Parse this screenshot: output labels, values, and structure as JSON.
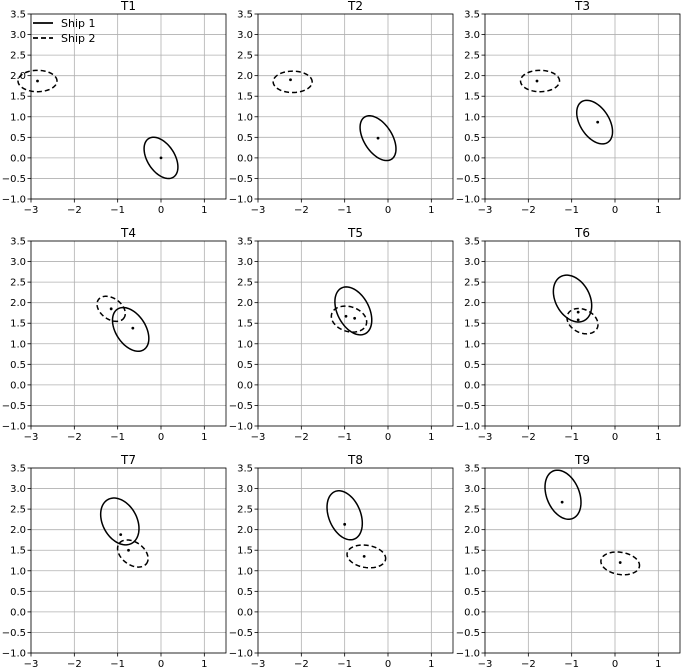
{
  "chart_data": {
    "type": "scatter",
    "layout": "3x3 grid of subplots",
    "xlim": [
      -3,
      1.5
    ],
    "ylim": [
      -1.0,
      3.5
    ],
    "x_ticks": [
      -3,
      -2,
      -1,
      0,
      1
    ],
    "y_ticks": [
      -1.0,
      -0.5,
      0.0,
      0.5,
      1.0,
      1.5,
      2.0,
      2.5,
      3.0,
      3.5
    ],
    "x_tick_labels": [
      "−3",
      "−2",
      "−1",
      "0",
      "1"
    ],
    "y_tick_labels": [
      "−1.0",
      "−0.5",
      "0.0",
      "0.5",
      "1.0",
      "1.5",
      "2.0",
      "2.5",
      "3.0",
      "3.5"
    ],
    "grid": true,
    "legend": {
      "placement": "top-left of first subplot",
      "entries": [
        {
          "label": "Ship 1",
          "style": "solid"
        },
        {
          "label": "Ship 2",
          "style": "dashed"
        }
      ]
    },
    "colors": {
      "ship1": "#000000",
      "ship2": "#000000",
      "grid": "#b0b0b0"
    },
    "panels": [
      {
        "title": "T1",
        "ship1": {
          "center": [
            0.0,
            0.0
          ],
          "radii": [
            0.55,
            0.32
          ],
          "angle_deg": -60
        },
        "ship2": {
          "center": [
            -2.85,
            1.87
          ],
          "radii": [
            0.45,
            0.26
          ],
          "angle_deg": 0
        }
      },
      {
        "title": "T2",
        "ship1": {
          "center": [
            -0.23,
            0.48
          ],
          "radii": [
            0.6,
            0.33
          ],
          "angle_deg": -60
        },
        "ship2": {
          "center": [
            -2.2,
            1.85
          ],
          "radii": [
            0.45,
            0.26
          ],
          "angle_deg": 0
        },
        "ship2_marker": [
          -2.25,
          1.9
        ]
      },
      {
        "title": "T3",
        "ship1": {
          "center": [
            -0.47,
            0.87
          ],
          "radii": [
            0.58,
            0.34
          ],
          "angle_deg": -60
        },
        "ship1_marker": [
          -0.4,
          0.87
        ],
        "ship2": {
          "center": [
            -1.73,
            1.87
          ],
          "radii": [
            0.45,
            0.26
          ],
          "angle_deg": 0
        },
        "ship2_marker": [
          -1.8,
          1.87
        ]
      },
      {
        "title": "T4",
        "ship1": {
          "center": [
            -0.7,
            1.35
          ],
          "radii": [
            0.58,
            0.35
          ],
          "angle_deg": -60
        },
        "ship1_marker": [
          -0.65,
          1.38
        ],
        "ship2": {
          "center": [
            -1.15,
            1.85
          ],
          "radii": [
            0.37,
            0.25
          ],
          "angle_deg": -40
        },
        "ship2_marker": [
          -1.15,
          1.85
        ]
      },
      {
        "title": "T5",
        "ship1": {
          "center": [
            -0.8,
            1.8
          ],
          "radii": [
            0.62,
            0.37
          ],
          "angle_deg": -65
        },
        "ship1_marker": [
          -0.97,
          1.67
        ],
        "ship2": {
          "center": [
            -0.9,
            1.6
          ],
          "radii": [
            0.42,
            0.3
          ],
          "angle_deg": -20
        },
        "ship2_marker": [
          -0.77,
          1.62
        ]
      },
      {
        "title": "T6",
        "ship1": {
          "center": [
            -0.98,
            2.1
          ],
          "radii": [
            0.6,
            0.4
          ],
          "angle_deg": -65
        },
        "ship1_marker": [
          -0.85,
          1.77
        ],
        "ship2": {
          "center": [
            -0.75,
            1.55
          ],
          "radii": [
            0.38,
            0.28
          ],
          "angle_deg": -30
        },
        "ship2_marker": [
          -0.85,
          1.58
        ]
      },
      {
        "title": "T7",
        "ship1": {
          "center": [
            -0.95,
            2.2
          ],
          "radii": [
            0.6,
            0.4
          ],
          "angle_deg": -65
        },
        "ship1_marker": [
          -0.93,
          1.88
        ],
        "ship2": {
          "center": [
            -0.65,
            1.42
          ],
          "radii": [
            0.4,
            0.27
          ],
          "angle_deg": -40
        },
        "ship2_marker": [
          -0.75,
          1.5
        ]
      },
      {
        "title": "T8",
        "ship1": {
          "center": [
            -1.0,
            2.35
          ],
          "radii": [
            0.62,
            0.37
          ],
          "angle_deg": -70
        },
        "ship1_marker": [
          -1.0,
          2.13
        ],
        "ship2": {
          "center": [
            -0.5,
            1.35
          ],
          "radii": [
            0.45,
            0.27
          ],
          "angle_deg": -10
        },
        "ship2_marker": [
          -0.55,
          1.35
        ]
      },
      {
        "title": "T9",
        "ship1": {
          "center": [
            -1.2,
            2.85
          ],
          "radii": [
            0.62,
            0.38
          ],
          "angle_deg": -70
        },
        "ship1_marker": [
          -1.22,
          2.67
        ],
        "ship2": {
          "center": [
            0.12,
            1.18
          ],
          "radii": [
            0.45,
            0.27
          ],
          "angle_deg": -10
        },
        "ship2_marker": [
          0.12,
          1.2
        ]
      }
    ]
  }
}
